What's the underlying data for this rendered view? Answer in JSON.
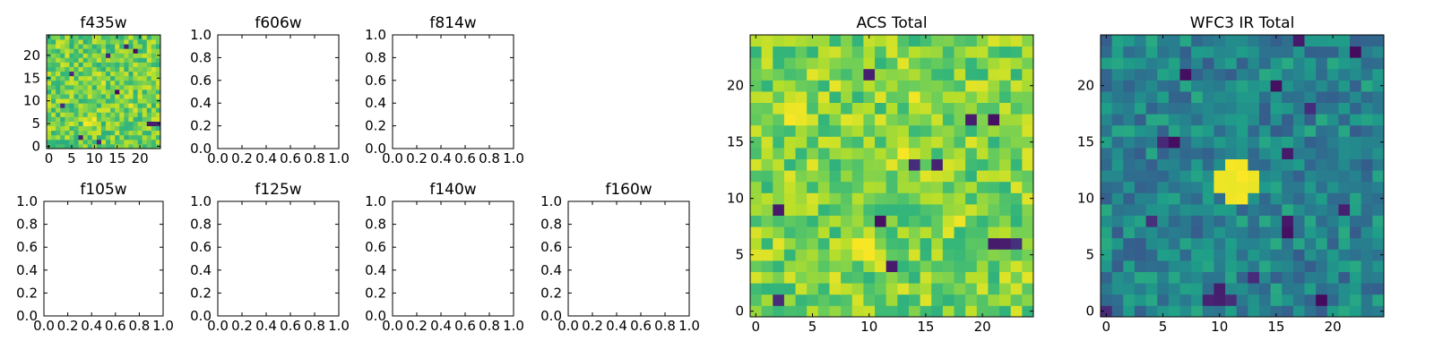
{
  "chart_data": [
    {
      "type": "heatmap",
      "title": "f435w",
      "grid": false,
      "colormap": "viridis",
      "xlim": [
        -0.5,
        24.5
      ],
      "ylim": [
        -0.5,
        24.5
      ],
      "xticks": [
        0,
        5,
        10,
        15,
        20
      ],
      "yticks": [
        0,
        5,
        10,
        15,
        20
      ],
      "tick_labels_x": [
        "0",
        "5",
        "10",
        "15",
        "20"
      ],
      "tick_labels_y": [
        "0",
        "5",
        "10",
        "15",
        "20"
      ],
      "shape": [
        25,
        25
      ],
      "z_range": [
        0,
        1
      ],
      "dominant_value": 0.78,
      "dark_cells": [
        [
          3,
          9
        ],
        [
          7,
          2
        ],
        [
          13,
          20
        ],
        [
          17,
          22
        ],
        [
          19,
          21
        ],
        [
          22,
          5
        ],
        [
          23,
          5
        ],
        [
          24,
          5
        ],
        [
          15,
          12
        ],
        [
          5,
          16
        ],
        [
          11,
          1
        ]
      ],
      "bright_cells": [
        [
          8,
          5
        ],
        [
          9,
          5
        ],
        [
          10,
          6
        ],
        [
          18,
          9
        ],
        [
          12,
          14
        ]
      ]
    },
    {
      "type": "scatter",
      "title": "f606w",
      "xlim": [
        0,
        1
      ],
      "ylim": [
        0,
        1
      ],
      "tick_labels_x": [
        "0.0",
        "0.2",
        "0.4",
        "0.6",
        "0.8",
        "1.0"
      ],
      "tick_labels_y": [
        "0.0",
        "0.2",
        "0.4",
        "0.6",
        "0.8",
        "1.0"
      ],
      "series": []
    },
    {
      "type": "scatter",
      "title": "f814w",
      "xlim": [
        0,
        1
      ],
      "ylim": [
        0,
        1
      ],
      "tick_labels_x": [
        "0.0",
        "0.2",
        "0.4",
        "0.6",
        "0.8",
        "1.0"
      ],
      "tick_labels_y": [
        "0.0",
        "0.2",
        "0.4",
        "0.6",
        "0.8",
        "1.0"
      ],
      "series": []
    },
    {
      "type": "scatter",
      "title": "f105w",
      "xlim": [
        0,
        1
      ],
      "ylim": [
        0,
        1
      ],
      "tick_labels_x": [
        "0.0",
        "0.2",
        "0.4",
        "0.6",
        "0.8",
        "1.0"
      ],
      "tick_labels_y": [
        "0.0",
        "0.2",
        "0.4",
        "0.6",
        "0.8",
        "1.0"
      ],
      "series": []
    },
    {
      "type": "scatter",
      "title": "f125w",
      "xlim": [
        0,
        1
      ],
      "ylim": [
        0,
        1
      ],
      "tick_labels_x": [
        "0.0",
        "0.2",
        "0.4",
        "0.6",
        "0.8",
        "1.0"
      ],
      "tick_labels_y": [
        "0.0",
        "0.2",
        "0.4",
        "0.6",
        "0.8",
        "1.0"
      ],
      "series": []
    },
    {
      "type": "scatter",
      "title": "f140w",
      "xlim": [
        0,
        1
      ],
      "ylim": [
        0,
        1
      ],
      "tick_labels_x": [
        "0.0",
        "0.2",
        "0.4",
        "0.6",
        "0.8",
        "1.0"
      ],
      "tick_labels_y": [
        "0.0",
        "0.2",
        "0.4",
        "0.6",
        "0.8",
        "1.0"
      ],
      "series": []
    },
    {
      "type": "scatter",
      "title": "f160w",
      "xlim": [
        0,
        1
      ],
      "ylim": [
        0,
        1
      ],
      "tick_labels_x": [
        "0.0",
        "0.2",
        "0.4",
        "0.6",
        "0.8",
        "1.0"
      ],
      "tick_labels_y": [
        "0.0",
        "0.2",
        "0.4",
        "0.6",
        "0.8",
        "1.0"
      ],
      "series": []
    },
    {
      "type": "heatmap",
      "title": "ACS Total",
      "grid": false,
      "colormap": "viridis",
      "xlim": [
        -0.5,
        24.5
      ],
      "ylim": [
        -0.5,
        24.5
      ],
      "xticks": [
        0,
        5,
        10,
        15,
        20
      ],
      "yticks": [
        0,
        5,
        10,
        15,
        20
      ],
      "tick_labels_x": [
        "0",
        "5",
        "10",
        "15",
        "20"
      ],
      "tick_labels_y": [
        "0",
        "5",
        "10",
        "15",
        "20"
      ],
      "shape": [
        25,
        25
      ],
      "z_range": [
        0,
        1
      ],
      "dominant_value": 0.8,
      "dark_cells": [
        [
          10,
          21
        ],
        [
          19,
          17
        ],
        [
          21,
          17
        ],
        [
          14,
          13
        ],
        [
          2,
          1
        ],
        [
          21,
          6
        ],
        [
          22,
          6
        ],
        [
          23,
          6
        ],
        [
          2,
          9
        ],
        [
          11,
          8
        ],
        [
          16,
          13
        ],
        [
          12,
          4
        ]
      ],
      "bright_cells": [
        [
          3,
          18
        ],
        [
          4,
          18
        ],
        [
          3,
          17
        ],
        [
          4,
          17
        ],
        [
          9,
          6
        ],
        [
          10,
          6
        ],
        [
          9,
          5
        ],
        [
          10,
          5
        ],
        [
          13,
          14
        ],
        [
          18,
          8
        ],
        [
          7,
          20
        ],
        [
          14,
          19
        ]
      ]
    },
    {
      "type": "heatmap",
      "title": "WFC3 IR Total",
      "grid": false,
      "colormap": "viridis",
      "xlim": [
        -0.5,
        24.5
      ],
      "ylim": [
        -0.5,
        24.5
      ],
      "xticks": [
        0,
        5,
        10,
        15,
        20
      ],
      "yticks": [
        0,
        5,
        10,
        15,
        20
      ],
      "tick_labels_x": [
        "0",
        "5",
        "10",
        "15",
        "20"
      ],
      "tick_labels_y": [
        "0",
        "5",
        "10",
        "15",
        "20"
      ],
      "shape": [
        25,
        25
      ],
      "z_range": [
        0,
        1
      ],
      "dominant_value": 0.45,
      "bright_cells": [
        [
          11,
          13
        ],
        [
          12,
          13
        ],
        [
          10,
          12
        ],
        [
          11,
          12
        ],
        [
          12,
          12
        ],
        [
          13,
          12
        ],
        [
          10,
          11
        ],
        [
          11,
          11
        ],
        [
          12,
          11
        ],
        [
          13,
          11
        ],
        [
          11,
          10
        ],
        [
          12,
          10
        ]
      ],
      "dark_cells": [
        [
          5,
          15
        ],
        [
          6,
          15
        ],
        [
          16,
          14
        ],
        [
          16,
          8
        ],
        [
          16,
          7
        ],
        [
          10,
          1
        ],
        [
          10,
          2
        ],
        [
          9,
          1
        ],
        [
          11,
          1
        ],
        [
          15,
          20
        ],
        [
          17,
          24
        ],
        [
          18,
          18
        ],
        [
          7,
          21
        ],
        [
          22,
          23
        ],
        [
          21,
          9
        ],
        [
          0,
          0
        ],
        [
          4,
          8
        ],
        [
          19,
          1
        ],
        [
          13,
          3
        ]
      ]
    }
  ]
}
